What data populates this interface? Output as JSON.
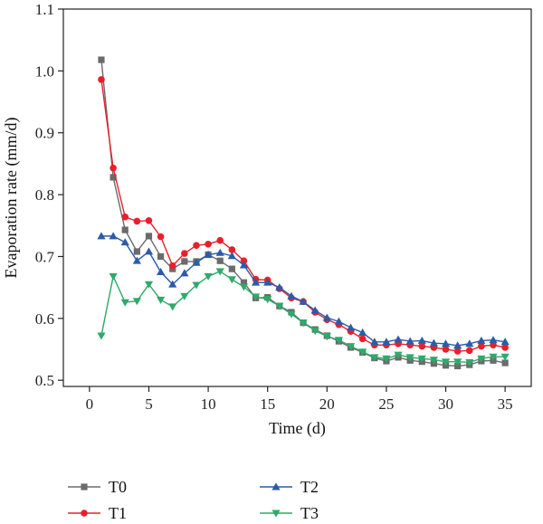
{
  "chart_data": {
    "type": "line",
    "xlabel": "Time (d)",
    "ylabel": "Evaporation rate (mm/d)",
    "xlim": [
      -2.2,
      37.2
    ],
    "ylim": [
      0.49,
      1.1
    ],
    "xticks": [
      0,
      5,
      10,
      15,
      20,
      25,
      30,
      35
    ],
    "yticks": [
      0.5,
      0.6,
      0.7,
      0.8,
      0.9,
      1.0,
      1.1
    ],
    "ytick_labels": [
      "0.5",
      "0.6",
      "0.7",
      "0.8",
      "0.9",
      "1.0",
      "1.1"
    ],
    "grid": false,
    "legend_position": "bottom",
    "x": [
      1,
      2,
      3,
      4,
      5,
      6,
      7,
      8,
      9,
      10,
      11,
      12,
      13,
      14,
      15,
      16,
      17,
      18,
      19,
      20,
      21,
      22,
      23,
      24,
      25,
      26,
      27,
      28,
      29,
      30,
      31,
      32,
      33,
      34,
      35
    ],
    "series": [
      {
        "name": "T0",
        "color": "#6b6b6b",
        "marker": "square",
        "values": [
          1.018,
          0.828,
          0.743,
          0.708,
          0.733,
          0.7,
          0.68,
          0.692,
          0.692,
          0.703,
          0.693,
          0.68,
          0.658,
          0.633,
          0.634,
          0.62,
          0.61,
          0.593,
          0.582,
          0.572,
          0.563,
          0.553,
          0.545,
          0.536,
          0.531,
          0.537,
          0.532,
          0.53,
          0.527,
          0.524,
          0.523,
          0.525,
          0.531,
          0.532,
          0.528
        ]
      },
      {
        "name": "T1",
        "color": "#e8202a",
        "marker": "circle",
        "values": [
          0.986,
          0.843,
          0.764,
          0.757,
          0.758,
          0.732,
          0.685,
          0.705,
          0.718,
          0.72,
          0.726,
          0.711,
          0.693,
          0.663,
          0.662,
          0.648,
          0.633,
          0.627,
          0.61,
          0.598,
          0.59,
          0.579,
          0.567,
          0.557,
          0.557,
          0.559,
          0.557,
          0.555,
          0.553,
          0.55,
          0.547,
          0.548,
          0.555,
          0.557,
          0.553
        ]
      },
      {
        "name": "T2",
        "color": "#2a5caa",
        "marker": "triangle-up",
        "values": [
          0.733,
          0.733,
          0.723,
          0.693,
          0.708,
          0.675,
          0.655,
          0.673,
          0.69,
          0.703,
          0.706,
          0.701,
          0.686,
          0.658,
          0.658,
          0.65,
          0.636,
          0.627,
          0.613,
          0.601,
          0.595,
          0.585,
          0.577,
          0.562,
          0.562,
          0.566,
          0.563,
          0.564,
          0.56,
          0.559,
          0.556,
          0.559,
          0.564,
          0.565,
          0.562
        ]
      },
      {
        "name": "T3",
        "color": "#2eaa6a",
        "marker": "triangle-down",
        "values": [
          0.572,
          0.668,
          0.626,
          0.628,
          0.655,
          0.63,
          0.619,
          0.636,
          0.654,
          0.668,
          0.676,
          0.663,
          0.651,
          0.635,
          0.631,
          0.62,
          0.607,
          0.593,
          0.58,
          0.571,
          0.565,
          0.555,
          0.546,
          0.537,
          0.535,
          0.541,
          0.537,
          0.535,
          0.533,
          0.53,
          0.53,
          0.529,
          0.535,
          0.538,
          0.538
        ]
      }
    ]
  }
}
